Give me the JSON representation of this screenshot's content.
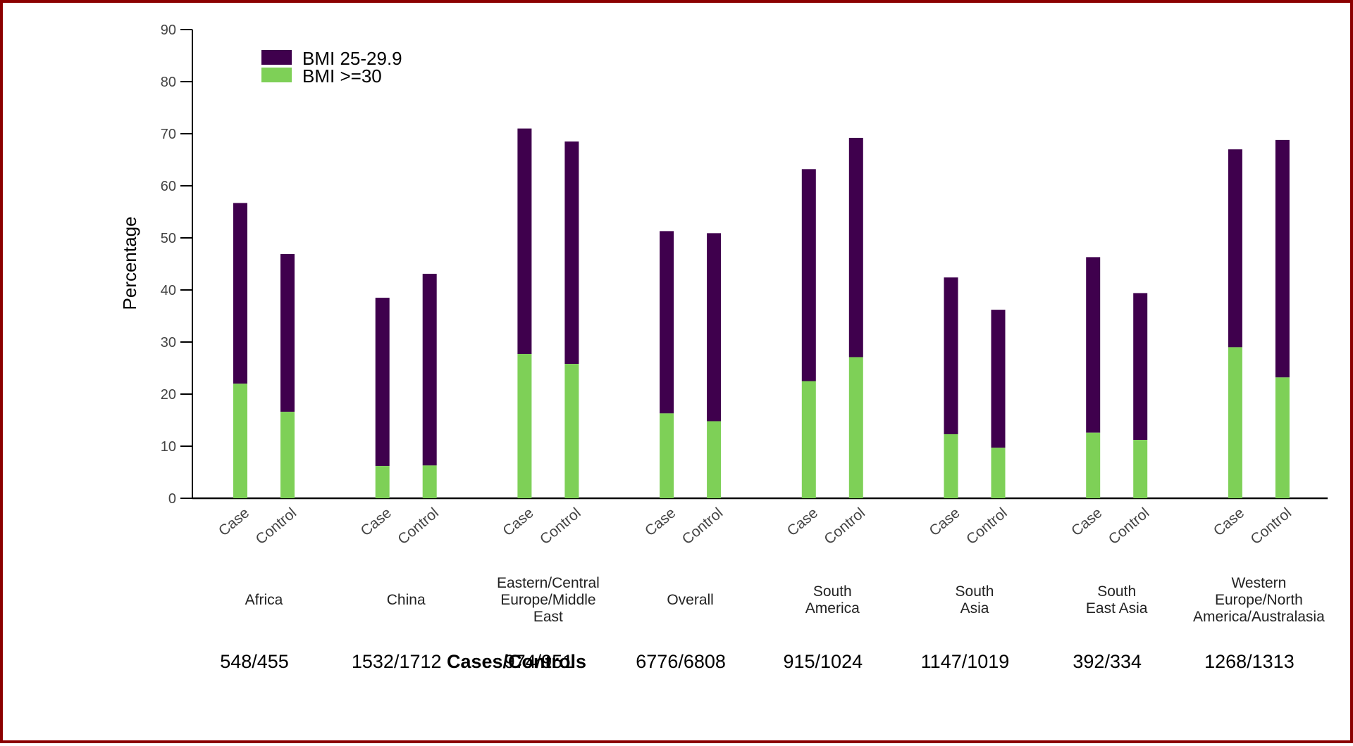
{
  "chart_data": {
    "type": "bar",
    "stacked": true,
    "ylabel": "Percentage",
    "ylim": [
      0,
      90
    ],
    "yticks": [
      0,
      10,
      20,
      30,
      40,
      50,
      60,
      70,
      80,
      90
    ],
    "legend": {
      "position": "top-left"
    },
    "colors": {
      "BMI 25-29.9": "#3f004d",
      "BMI >=30": "#7ed057"
    },
    "series": [
      {
        "name": "BMI 25-29.9"
      },
      {
        "name": "BMI >=30"
      }
    ],
    "groups": [
      {
        "region": [
          "Africa"
        ],
        "counts": "548/455",
        "bars": [
          {
            "label": "Case",
            "bmi_30_plus": 22.0,
            "total": 56.7
          },
          {
            "label": "Control",
            "bmi_30_plus": 16.6,
            "total": 46.9
          }
        ]
      },
      {
        "region": [
          "China"
        ],
        "counts": "1532/1712",
        "bars": [
          {
            "label": "Case",
            "bmi_30_plus": 6.2,
            "total": 38.5
          },
          {
            "label": "Control",
            "bmi_30_plus": 6.3,
            "total": 43.1
          }
        ]
      },
      {
        "region": [
          "Eastern/Central",
          "Europe/Middle",
          "East"
        ],
        "counts": "974/951",
        "bars": [
          {
            "label": "Case",
            "bmi_30_plus": 27.7,
            "total": 71.0
          },
          {
            "label": "Control",
            "bmi_30_plus": 25.8,
            "total": 68.5
          }
        ]
      },
      {
        "region": [
          "Overall"
        ],
        "counts": "6776/6808",
        "bars": [
          {
            "label": "Case",
            "bmi_30_plus": 16.3,
            "total": 51.3
          },
          {
            "label": "Control",
            "bmi_30_plus": 14.8,
            "total": 50.9
          }
        ]
      },
      {
        "region": [
          "South",
          "America"
        ],
        "counts": "915/1024",
        "bars": [
          {
            "label": "Case",
            "bmi_30_plus": 22.5,
            "total": 63.2
          },
          {
            "label": "Control",
            "bmi_30_plus": 27.1,
            "total": 69.2
          }
        ]
      },
      {
        "region": [
          "South",
          "Asia"
        ],
        "counts": "1147/1019",
        "bars": [
          {
            "label": "Case",
            "bmi_30_plus": 12.3,
            "total": 42.4
          },
          {
            "label": "Control",
            "bmi_30_plus": 9.7,
            "total": 36.2
          }
        ]
      },
      {
        "region": [
          "South",
          "East Asia"
        ],
        "counts": "392/334",
        "bars": [
          {
            "label": "Case",
            "bmi_30_plus": 12.6,
            "total": 46.3
          },
          {
            "label": "Control",
            "bmi_30_plus": 11.2,
            "total": 39.4
          }
        ]
      },
      {
        "region": [
          "Western",
          "Europe/North",
          "America/Australasia"
        ],
        "counts": "1268/1313",
        "bars": [
          {
            "label": "Case",
            "bmi_30_plus": 29.0,
            "total": 67.0
          },
          {
            "label": "Control",
            "bmi_30_plus": 23.2,
            "total": 68.8
          }
        ]
      }
    ],
    "counts_title": "Cases/Controls"
  }
}
